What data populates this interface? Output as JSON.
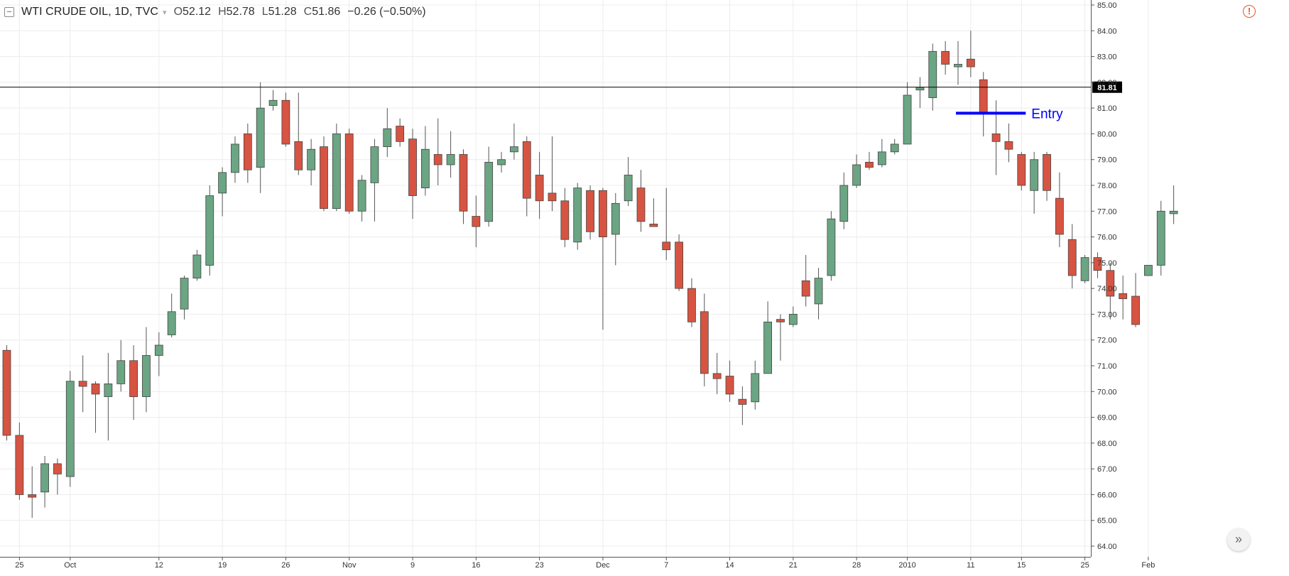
{
  "header": {
    "symbol": "WTI CRUDE OIL, 1D, TVC",
    "open_label": "O",
    "open": "52.12",
    "high_label": "H",
    "high": "52.78",
    "low_label": "L",
    "low": "51.28",
    "close_label": "C",
    "close": "51.86",
    "change": "−0.26 (−0.50%)"
  },
  "icons": {
    "alert": "exclamation-circle-icon",
    "scroll": "double-chevron-right-icon",
    "collapse": "collapse-box-icon"
  },
  "chart_data": {
    "type": "candlestick",
    "ylim": [
      64,
      85
    ],
    "y_ticks": [
      "64.00",
      "65.00",
      "66.00",
      "67.00",
      "68.00",
      "69.00",
      "70.00",
      "71.00",
      "72.00",
      "73.00",
      "74.00",
      "75.00",
      "76.00",
      "77.00",
      "78.00",
      "79.00",
      "80.00",
      "81.00",
      "82.00",
      "83.00",
      "84.00",
      "85.00"
    ],
    "x_ticks": [
      {
        "label": "25",
        "index": 1
      },
      {
        "label": "Oct",
        "index": 5
      },
      {
        "label": "12",
        "index": 12
      },
      {
        "label": "19",
        "index": 17
      },
      {
        "label": "26",
        "index": 22
      },
      {
        "label": "Nov",
        "index": 27
      },
      {
        "label": "9",
        "index": 32
      },
      {
        "label": "16",
        "index": 37
      },
      {
        "label": "23",
        "index": 42
      },
      {
        "label": "Dec",
        "index": 47
      },
      {
        "label": "7",
        "index": 52
      },
      {
        "label": "14",
        "index": 57
      },
      {
        "label": "21",
        "index": 62
      },
      {
        "label": "28",
        "index": 67
      },
      {
        "label": "2010",
        "index": 71
      },
      {
        "label": "11",
        "index": 76
      },
      {
        "label": "15",
        "index": 80
      },
      {
        "label": "25",
        "index": 85
      },
      {
        "label": "Feb",
        "index": 90
      }
    ],
    "colors": {
      "up": "#6ba583",
      "down": "#d75442",
      "wick": "#555555",
      "grid": "#ececec"
    },
    "horizontal_line": {
      "value": "81.81",
      "color": "#000000"
    },
    "annotation": {
      "text": "Entry",
      "color": "#0000ff",
      "y": 80.8,
      "from_index": 75,
      "to_index": 80
    },
    "candles": [
      [
        71.6,
        71.8,
        68.1,
        68.3
      ],
      [
        68.3,
        68.8,
        65.8,
        66.0
      ],
      [
        66.0,
        67.1,
        65.1,
        65.9
      ],
      [
        66.1,
        67.5,
        65.5,
        67.2
      ],
      [
        67.2,
        67.4,
        66.0,
        66.8
      ],
      [
        66.7,
        70.8,
        66.3,
        70.4
      ],
      [
        70.4,
        71.4,
        69.2,
        70.2
      ],
      [
        70.3,
        70.4,
        68.4,
        69.9
      ],
      [
        69.8,
        71.5,
        68.1,
        70.3
      ],
      [
        70.3,
        72.0,
        70.0,
        71.2
      ],
      [
        71.2,
        71.8,
        68.9,
        69.8
      ],
      [
        69.8,
        72.5,
        69.2,
        71.4
      ],
      [
        71.4,
        72.3,
        70.6,
        71.8
      ],
      [
        72.2,
        73.8,
        72.1,
        73.1
      ],
      [
        73.2,
        74.5,
        72.8,
        74.4
      ],
      [
        74.4,
        75.5,
        74.3,
        75.3
      ],
      [
        74.9,
        78.0,
        74.5,
        77.6
      ],
      [
        77.7,
        78.7,
        76.8,
        78.5
      ],
      [
        78.5,
        79.9,
        78.1,
        79.6
      ],
      [
        80.0,
        80.4,
        78.1,
        78.6
      ],
      [
        78.7,
        82.0,
        77.7,
        81.0
      ],
      [
        81.1,
        81.7,
        80.9,
        81.3
      ],
      [
        81.3,
        81.6,
        79.5,
        79.6
      ],
      [
        79.7,
        81.6,
        78.4,
        78.6
      ],
      [
        78.6,
        79.8,
        78.0,
        79.4
      ],
      [
        79.5,
        79.9,
        77.0,
        77.1
      ],
      [
        77.1,
        80.4,
        77.0,
        80.0
      ],
      [
        80.0,
        80.2,
        76.9,
        77.0
      ],
      [
        77.0,
        78.4,
        76.6,
        78.2
      ],
      [
        78.1,
        79.8,
        76.6,
        79.5
      ],
      [
        79.5,
        81.0,
        79.1,
        80.2
      ],
      [
        80.3,
        80.6,
        79.5,
        79.7
      ],
      [
        79.8,
        80.2,
        76.7,
        77.6
      ],
      [
        77.9,
        80.3,
        77.6,
        79.4
      ],
      [
        79.2,
        80.6,
        78.0,
        78.8
      ],
      [
        78.8,
        80.1,
        78.3,
        79.2
      ],
      [
        79.2,
        79.4,
        76.5,
        77.0
      ],
      [
        76.8,
        77.6,
        75.6,
        76.4
      ],
      [
        76.6,
        79.5,
        76.4,
        78.9
      ],
      [
        78.8,
        79.3,
        78.5,
        79.0
      ],
      [
        79.3,
        80.4,
        79.0,
        79.5
      ],
      [
        79.7,
        79.9,
        76.8,
        77.5
      ],
      [
        78.4,
        79.3,
        76.7,
        77.4
      ],
      [
        77.7,
        79.9,
        77.0,
        77.4
      ],
      [
        77.4,
        77.9,
        75.6,
        75.9
      ],
      [
        75.8,
        78.1,
        75.5,
        77.9
      ],
      [
        77.8,
        78.0,
        75.9,
        76.2
      ],
      [
        77.8,
        77.9,
        72.4,
        76.0
      ],
      [
        76.1,
        77.7,
        74.9,
        77.3
      ],
      [
        77.4,
        79.1,
        77.2,
        78.4
      ],
      [
        77.9,
        78.6,
        76.2,
        76.6
      ],
      [
        76.5,
        77.5,
        76.4,
        76.4
      ],
      [
        75.8,
        77.9,
        75.1,
        75.5
      ],
      [
        75.8,
        76.1,
        73.9,
        74.0
      ],
      [
        74.0,
        74.4,
        72.5,
        72.7
      ],
      [
        73.1,
        73.8,
        70.2,
        70.7
      ],
      [
        70.7,
        71.5,
        69.9,
        70.5
      ],
      [
        70.6,
        71.2,
        69.6,
        69.9
      ],
      [
        69.7,
        70.2,
        68.7,
        69.5
      ],
      [
        69.6,
        71.2,
        69.3,
        70.7
      ],
      [
        70.7,
        73.5,
        70.7,
        72.7
      ],
      [
        72.8,
        73.0,
        71.2,
        72.7
      ],
      [
        72.6,
        73.3,
        72.5,
        73.0
      ],
      [
        74.3,
        75.3,
        73.3,
        73.7
      ],
      [
        73.4,
        74.8,
        72.8,
        74.4
      ],
      [
        74.5,
        77.0,
        74.3,
        76.7
      ],
      [
        76.6,
        78.5,
        76.3,
        78.0
      ],
      [
        78.0,
        79.2,
        77.9,
        78.8
      ],
      [
        78.9,
        79.3,
        78.6,
        78.7
      ],
      [
        78.8,
        79.8,
        78.7,
        79.3
      ],
      [
        79.3,
        79.8,
        79.2,
        79.6
      ],
      [
        79.6,
        82.0,
        79.6,
        81.5
      ],
      [
        81.7,
        82.2,
        81.0,
        81.8
      ],
      [
        81.4,
        83.5,
        80.9,
        83.2
      ],
      [
        83.2,
        83.6,
        82.3,
        82.7
      ],
      [
        82.6,
        83.6,
        81.9,
        82.7
      ],
      [
        82.9,
        84.0,
        82.2,
        82.6
      ],
      [
        82.1,
        82.4,
        79.9,
        80.8
      ],
      [
        80.0,
        81.3,
        78.4,
        79.7
      ],
      [
        79.7,
        80.4,
        78.9,
        79.4
      ],
      [
        79.2,
        79.3,
        77.8,
        78.0
      ],
      [
        77.8,
        79.3,
        76.9,
        79.0
      ],
      [
        79.2,
        79.3,
        77.4,
        77.8
      ],
      [
        77.5,
        78.5,
        75.6,
        76.1
      ],
      [
        75.9,
        76.5,
        74.0,
        74.5
      ],
      [
        74.3,
        75.3,
        74.2,
        75.2
      ],
      [
        75.2,
        75.4,
        74.4,
        74.7
      ],
      [
        74.7,
        75.0,
        72.8,
        73.7
      ],
      [
        73.8,
        74.5,
        72.8,
        73.6
      ],
      [
        73.7,
        74.6,
        72.5,
        72.6
      ],
      [
        74.5,
        74.9,
        74.5,
        74.9
      ],
      [
        74.9,
        77.4,
        74.5,
        77.0
      ],
      [
        76.9,
        78.0,
        76.5,
        77.0
      ]
    ]
  }
}
